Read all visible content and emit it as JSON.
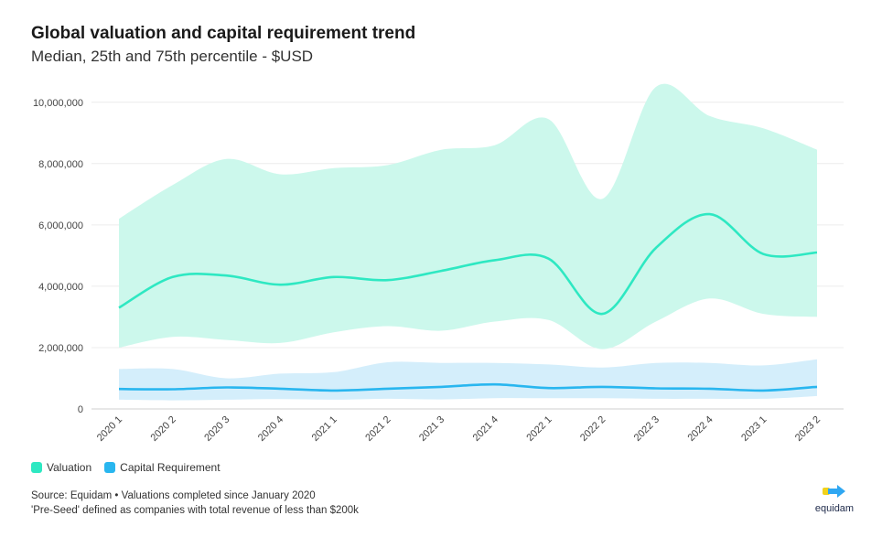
{
  "title": "Global valuation and capital requirement trend",
  "subtitle": "Median, 25th and 75th percentile - $USD",
  "legend": [
    {
      "label": "Valuation",
      "color": "#2ee8c2"
    },
    {
      "label": "Capital Requirement",
      "color": "#29b6ef"
    }
  ],
  "source": {
    "line1": "Source: Equidam • Valuations completed since January 2020",
    "line2": "'Pre-Seed' defined as companies with total revenue of less than $200k"
  },
  "logo": {
    "text": "equidam",
    "icon": "equidam-logo-icon"
  },
  "colors": {
    "valuation_line": "#2ee8c2",
    "valuation_band": "#ccf8ec",
    "capital_line": "#29b6ef",
    "capital_band": "#d4eefb",
    "grid": "#ececec"
  },
  "chart_data": {
    "type": "area",
    "categories": [
      "2020 1",
      "2020 2",
      "2020 3",
      "2020 4",
      "2021 1",
      "2021 2",
      "2021 3",
      "2021 4",
      "2022 1",
      "2022 2",
      "2022 3",
      "2022 4",
      "2023 1",
      "2023 2"
    ],
    "ylim": [
      0,
      10500000
    ],
    "yticks": [
      0,
      2000000,
      4000000,
      6000000,
      8000000,
      10000000
    ],
    "ytick_labels": [
      "0",
      "2,000,000",
      "4,000,000",
      "6,000,000",
      "8,000,000",
      "10,000,000"
    ],
    "grid": true,
    "legend_position": "bottom-left",
    "series": [
      {
        "name": "Valuation",
        "median": [
          3300000,
          4300000,
          4350000,
          4050000,
          4300000,
          4200000,
          4500000,
          4850000,
          4900000,
          3100000,
          5250000,
          6350000,
          5050000,
          5100000
        ],
        "p25": [
          2000000,
          2350000,
          2250000,
          2150000,
          2500000,
          2700000,
          2550000,
          2850000,
          2900000,
          1950000,
          2850000,
          3600000,
          3100000,
          3000000
        ],
        "p75": [
          6200000,
          7300000,
          8150000,
          7650000,
          7850000,
          7950000,
          8450000,
          8600000,
          9450000,
          6850000,
          10500000,
          9550000,
          9150000,
          8450000
        ]
      },
      {
        "name": "Capital Requirement",
        "median": [
          650000,
          640000,
          700000,
          660000,
          600000,
          660000,
          720000,
          800000,
          680000,
          720000,
          670000,
          660000,
          600000,
          720000
        ],
        "p25": [
          300000,
          280000,
          300000,
          320000,
          300000,
          330000,
          310000,
          350000,
          350000,
          350000,
          330000,
          330000,
          330000,
          420000
        ],
        "p75": [
          1300000,
          1300000,
          1000000,
          1150000,
          1200000,
          1520000,
          1500000,
          1500000,
          1450000,
          1350000,
          1500000,
          1500000,
          1420000,
          1620000
        ]
      }
    ]
  }
}
